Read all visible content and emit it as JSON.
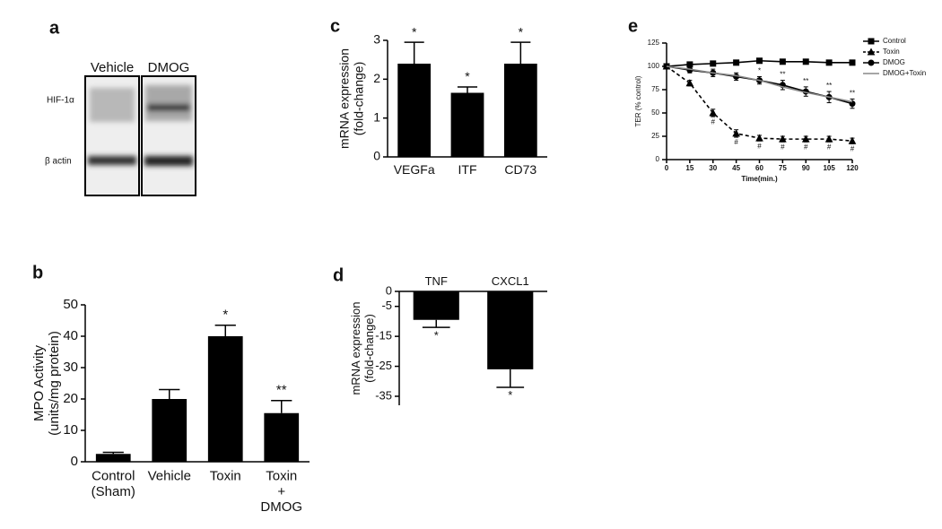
{
  "blot": {
    "label": "a",
    "lanes": [
      "Vehicle",
      "DMOG"
    ],
    "rows": [
      "HIF-1α",
      "β actin"
    ]
  },
  "chart_data": [
    {
      "type": "bar",
      "label": "b",
      "y_label": "MPO Activity\n(units/mg protein)",
      "categories": [
        "Control\n(Sham)",
        "Vehicle",
        "Toxin",
        "Toxin\n+\nDMOG"
      ],
      "values": [
        2.5,
        20,
        40,
        15.5
      ],
      "errors": [
        0.5,
        3,
        3.5,
        4
      ],
      "annotations": [
        null,
        null,
        "*",
        "**"
      ],
      "color": "#000000",
      "ylim": [
        0,
        50
      ],
      "yticks": [
        0,
        10,
        20,
        30,
        40,
        50
      ]
    },
    {
      "type": "bar",
      "label": "c",
      "y_label": "mRNA expression\n(fold-change)",
      "categories": [
        "VEGFa",
        "ITF",
        "CD73"
      ],
      "values": [
        2.4,
        1.65,
        2.4
      ],
      "errors": [
        0.55,
        0.15,
        0.55
      ],
      "annotations": [
        "*",
        "*",
        "*"
      ],
      "color": "#000000",
      "ylim": [
        0,
        3
      ],
      "yticks": [
        0,
        1,
        2,
        3
      ]
    },
    {
      "type": "bar",
      "label": "d",
      "y_label": "mRNA expression\n(fold-change)",
      "categories": [
        "TNF",
        "CXCL1"
      ],
      "values": [
        -9.5,
        -26
      ],
      "errors": [
        2.5,
        6
      ],
      "annotations": [
        "*",
        "*"
      ],
      "color": "#000000",
      "ylim": [
        -38,
        0
      ],
      "yticks": [
        0,
        -5,
        -15,
        -25,
        -35
      ]
    },
    {
      "type": "line",
      "label": "e",
      "y_label": "TER (% control)",
      "x_label": "Time(min.)",
      "x": [
        0,
        15,
        30,
        45,
        60,
        75,
        90,
        105,
        120
      ],
      "xlim": [
        0,
        120
      ],
      "xticks": [
        0,
        15,
        30,
        45,
        60,
        75,
        90,
        105,
        120
      ],
      "ylim": [
        0,
        125
      ],
      "yticks": [
        0,
        25,
        50,
        75,
        100,
        125
      ],
      "legend": "right",
      "series": [
        {
          "name": "Control",
          "color": "#000000",
          "marker": "square",
          "dashed": false,
          "values": [
            100,
            102,
            103,
            104,
            106,
            105,
            105,
            104,
            104
          ]
        },
        {
          "name": "Toxin",
          "color": "#000000",
          "marker": "triangle",
          "dashed": true,
          "values": [
            100,
            82,
            50,
            28,
            23,
            22,
            22,
            22,
            20
          ],
          "errors": [
            2,
            3,
            4,
            4,
            3,
            3,
            3,
            3,
            3
          ],
          "annotations": [
            null,
            null,
            "#",
            "#",
            "#",
            "#",
            "#",
            "#",
            "#"
          ]
        },
        {
          "name": "DMOG",
          "color": "#000000",
          "marker": "circle",
          "dashed": false,
          "values": [
            100,
            96,
            93,
            89,
            85,
            80,
            73,
            67,
            60
          ],
          "errors": [
            2,
            3,
            4,
            4,
            4,
            5,
            5,
            6,
            5
          ],
          "annotations": [
            null,
            null,
            null,
            null,
            "*",
            "**",
            "**",
            "**",
            "**"
          ]
        },
        {
          "name": "DMOG+Toxin",
          "color": "#888888",
          "marker": "none",
          "dashed": false,
          "values": [
            100,
            97,
            93,
            90,
            85,
            78,
            72,
            67,
            62
          ]
        }
      ]
    }
  ]
}
